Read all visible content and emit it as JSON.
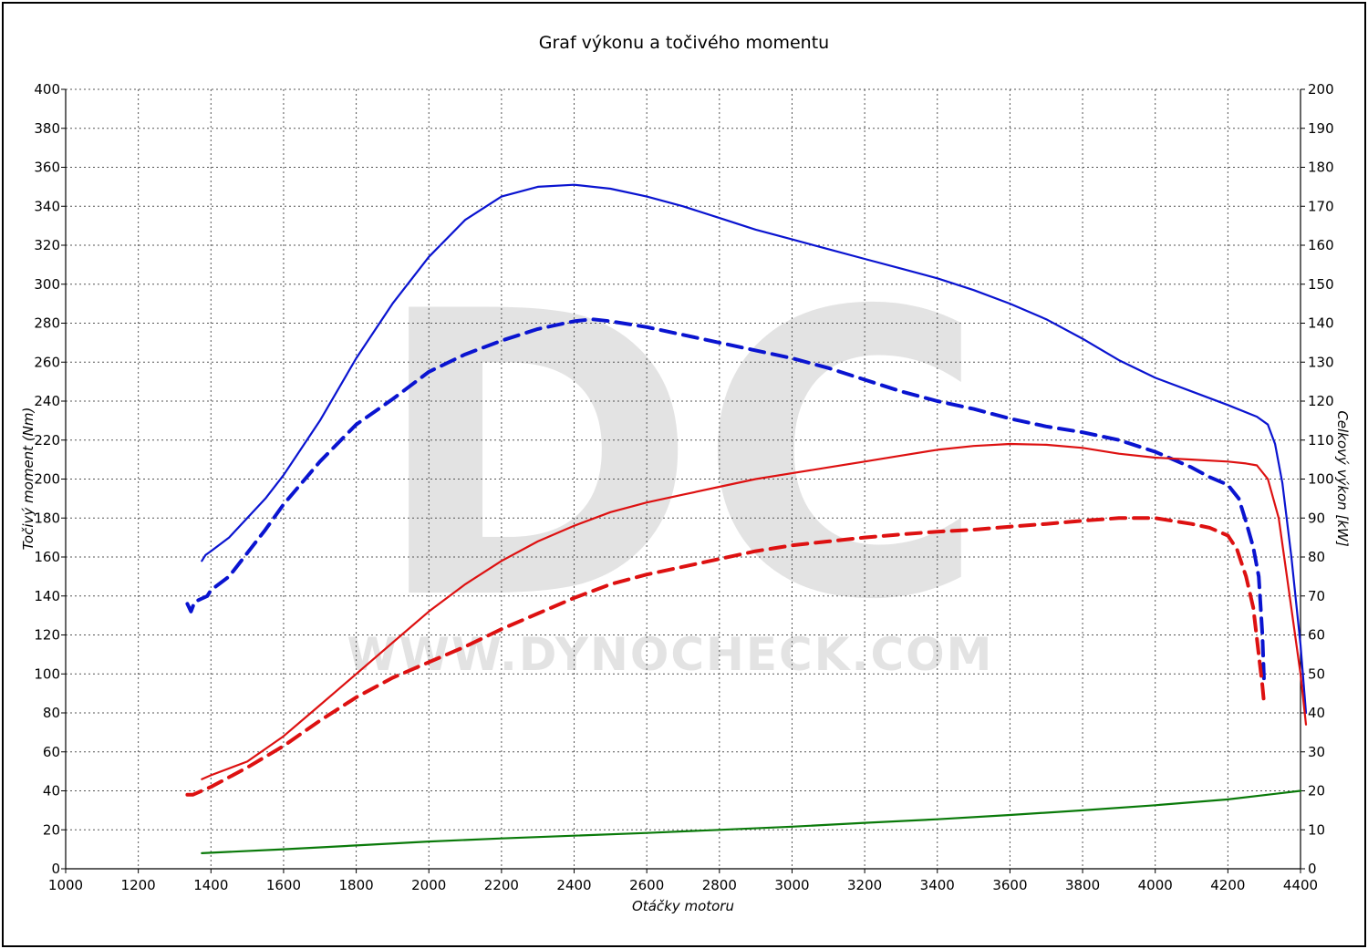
{
  "chart_data": {
    "type": "line",
    "title": "Graf výkonu a točivého momentu",
    "xlabel": "Otáčky motoru",
    "ylabel_left": "Točivý moment (Nm)",
    "ylabel_right": "Celkový výkon [kW]",
    "watermark_logo": "DC",
    "watermark_text": "WWW.DYNOCHECK.COM",
    "xlim": [
      1000,
      4400
    ],
    "ylim_left": [
      0,
      400
    ],
    "ylim_right": [
      0,
      200
    ],
    "x_ticks": [
      "1000",
      "1200",
      "1400",
      "1600",
      "1800",
      "2000",
      "2200",
      "2400",
      "2600",
      "2800",
      "3000",
      "3200",
      "3400",
      "3600",
      "3800",
      "4000",
      "4200",
      "4400"
    ],
    "y_ticks_left": [
      "0",
      "20",
      "40",
      "60",
      "80",
      "100",
      "120",
      "140",
      "160",
      "180",
      "200",
      "220",
      "240",
      "260",
      "280",
      "300",
      "320",
      "340",
      "360",
      "380",
      "400"
    ],
    "y_ticks_right": [
      "0",
      "10",
      "20",
      "30",
      "40",
      "50",
      "60",
      "70",
      "80",
      "90",
      "100",
      "110",
      "120",
      "130",
      "140",
      "150",
      "160",
      "170",
      "180",
      "190",
      "200"
    ],
    "grid": true,
    "series": [
      {
        "axis": "left",
        "color": "#0a14d0",
        "dash": false,
        "width": 2.2,
        "points": [
          [
            1375,
            158
          ],
          [
            1385,
            161
          ],
          [
            1400,
            163
          ],
          [
            1450,
            170
          ],
          [
            1500,
            180
          ],
          [
            1550,
            190
          ],
          [
            1600,
            202
          ],
          [
            1700,
            230
          ],
          [
            1800,
            262
          ],
          [
            1900,
            290
          ],
          [
            2000,
            314
          ],
          [
            2100,
            333
          ],
          [
            2200,
            345
          ],
          [
            2300,
            350
          ],
          [
            2400,
            351
          ],
          [
            2500,
            349
          ],
          [
            2600,
            345
          ],
          [
            2700,
            340
          ],
          [
            2800,
            334
          ],
          [
            2900,
            328
          ],
          [
            3000,
            323
          ],
          [
            3100,
            318
          ],
          [
            3200,
            313
          ],
          [
            3300,
            308
          ],
          [
            3400,
            303
          ],
          [
            3500,
            297
          ],
          [
            3600,
            290
          ],
          [
            3700,
            282
          ],
          [
            3800,
            272
          ],
          [
            3900,
            261
          ],
          [
            4000,
            252
          ],
          [
            4100,
            245
          ],
          [
            4200,
            238
          ],
          [
            4280,
            232
          ],
          [
            4310,
            228
          ],
          [
            4330,
            218
          ],
          [
            4350,
            198
          ],
          [
            4375,
            160
          ],
          [
            4400,
            115
          ],
          [
            4415,
            80
          ]
        ]
      },
      {
        "axis": "left",
        "color": "#0a14d0",
        "dash": true,
        "width": 4,
        "points": [
          [
            1335,
            136
          ],
          [
            1345,
            132
          ],
          [
            1355,
            137
          ],
          [
            1390,
            140
          ],
          [
            1400,
            143
          ],
          [
            1450,
            150
          ],
          [
            1500,
            162
          ],
          [
            1550,
            174
          ],
          [
            1600,
            187
          ],
          [
            1700,
            209
          ],
          [
            1800,
            228
          ],
          [
            1900,
            241
          ],
          [
            2000,
            255
          ],
          [
            2100,
            264
          ],
          [
            2200,
            271
          ],
          [
            2300,
            277
          ],
          [
            2400,
            281
          ],
          [
            2450,
            282
          ],
          [
            2500,
            281
          ],
          [
            2600,
            278
          ],
          [
            2700,
            274
          ],
          [
            2800,
            270
          ],
          [
            2900,
            266
          ],
          [
            3000,
            262
          ],
          [
            3100,
            257
          ],
          [
            3200,
            251
          ],
          [
            3300,
            245
          ],
          [
            3400,
            240
          ],
          [
            3500,
            236
          ],
          [
            3600,
            231
          ],
          [
            3700,
            227
          ],
          [
            3800,
            224
          ],
          [
            3900,
            220
          ],
          [
            4000,
            214
          ],
          [
            4100,
            206
          ],
          [
            4150,
            201
          ],
          [
            4200,
            197
          ],
          [
            4230,
            190
          ],
          [
            4250,
            178
          ],
          [
            4270,
            165
          ],
          [
            4285,
            150
          ],
          [
            4295,
            120
          ],
          [
            4300,
            94
          ]
        ]
      },
      {
        "axis": "right",
        "color": "#dd1111",
        "dash": false,
        "width": 2.2,
        "points": [
          [
            1375,
            23
          ],
          [
            1400,
            24
          ],
          [
            1500,
            27.5
          ],
          [
            1600,
            34
          ],
          [
            1700,
            42
          ],
          [
            1800,
            50
          ],
          [
            1900,
            58
          ],
          [
            2000,
            66
          ],
          [
            2100,
            73
          ],
          [
            2200,
            79
          ],
          [
            2300,
            84
          ],
          [
            2400,
            88
          ],
          [
            2500,
            91.5
          ],
          [
            2600,
            94
          ],
          [
            2700,
            96
          ],
          [
            2800,
            98
          ],
          [
            2900,
            100
          ],
          [
            3000,
            101.5
          ],
          [
            3100,
            103
          ],
          [
            3200,
            104.5
          ],
          [
            3300,
            106
          ],
          [
            3400,
            107.5
          ],
          [
            3500,
            108.5
          ],
          [
            3600,
            109
          ],
          [
            3700,
            108.8
          ],
          [
            3800,
            108
          ],
          [
            3900,
            106.5
          ],
          [
            4000,
            105.5
          ],
          [
            4100,
            105
          ],
          [
            4200,
            104.5
          ],
          [
            4250,
            104
          ],
          [
            4280,
            103.5
          ],
          [
            4310,
            100
          ],
          [
            4340,
            90
          ],
          [
            4370,
            70
          ],
          [
            4400,
            50
          ],
          [
            4415,
            37
          ]
        ]
      },
      {
        "axis": "right",
        "color": "#dd1111",
        "dash": true,
        "width": 4,
        "points": [
          [
            1335,
            19
          ],
          [
            1350,
            19
          ],
          [
            1400,
            21
          ],
          [
            1500,
            26
          ],
          [
            1600,
            31.5
          ],
          [
            1700,
            38
          ],
          [
            1800,
            44
          ],
          [
            1900,
            49
          ],
          [
            2000,
            53
          ],
          [
            2100,
            57
          ],
          [
            2200,
            61.5
          ],
          [
            2300,
            65.5
          ],
          [
            2400,
            69.5
          ],
          [
            2500,
            73
          ],
          [
            2600,
            75.5
          ],
          [
            2700,
            77.5
          ],
          [
            2800,
            79.5
          ],
          [
            2900,
            81.5
          ],
          [
            3000,
            83
          ],
          [
            3100,
            84
          ],
          [
            3200,
            85
          ],
          [
            3300,
            85.8
          ],
          [
            3400,
            86.5
          ],
          [
            3500,
            87
          ],
          [
            3600,
            87.8
          ],
          [
            3700,
            88.5
          ],
          [
            3800,
            89.3
          ],
          [
            3900,
            90
          ],
          [
            4000,
            90
          ],
          [
            4100,
            88.5
          ],
          [
            4150,
            87.5
          ],
          [
            4200,
            85.5
          ],
          [
            4225,
            82
          ],
          [
            4250,
            75
          ],
          [
            4270,
            67
          ],
          [
            4285,
            55
          ],
          [
            4295,
            47
          ],
          [
            4300,
            42
          ]
        ]
      },
      {
        "axis": "right",
        "color": "#0a7a0a",
        "dash": false,
        "width": 2.2,
        "points": [
          [
            1375,
            4
          ],
          [
            1600,
            5
          ],
          [
            1800,
            6
          ],
          [
            2000,
            7
          ],
          [
            2200,
            7.8
          ],
          [
            2400,
            8.5
          ],
          [
            2600,
            9.2
          ],
          [
            2800,
            10
          ],
          [
            3000,
            10.8
          ],
          [
            3200,
            11.8
          ],
          [
            3400,
            12.7
          ],
          [
            3600,
            13.8
          ],
          [
            3800,
            15
          ],
          [
            4000,
            16.3
          ],
          [
            4200,
            17.8
          ],
          [
            4400,
            20
          ]
        ]
      }
    ]
  }
}
